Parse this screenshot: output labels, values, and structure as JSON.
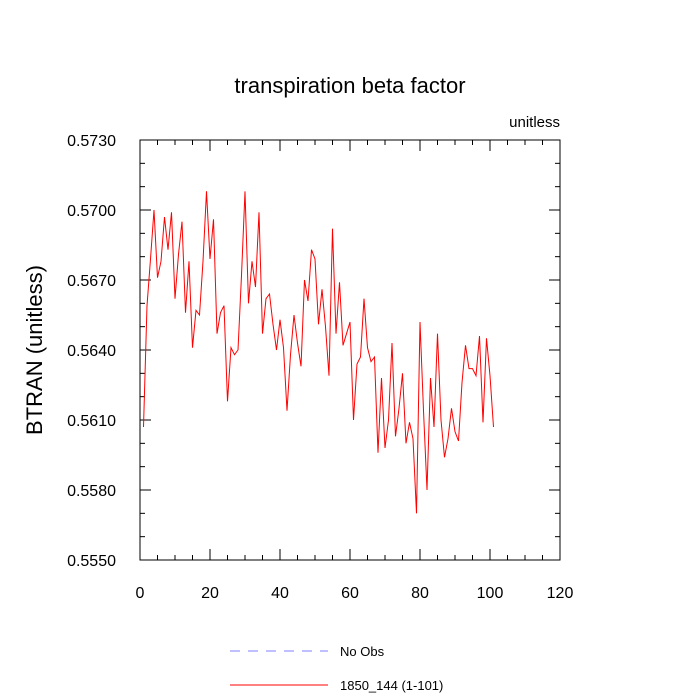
{
  "chart_data": {
    "type": "line",
    "title": "transpiration beta factor",
    "units_label": "unitless",
    "ylabel": "BTRAN  (unitless)",
    "xlabel": "",
    "xlim": [
      0,
      120
    ],
    "ylim": [
      0.555,
      0.573
    ],
    "x_ticks": [
      0,
      20,
      40,
      60,
      80,
      100,
      120
    ],
    "x_tick_labels": [
      "0",
      "20",
      "40",
      "60",
      "80",
      "100",
      "120"
    ],
    "y_ticks": [
      0.555,
      0.558,
      0.561,
      0.564,
      0.567,
      0.57,
      0.573
    ],
    "y_tick_labels": [
      "0.5550",
      "0.5580",
      "0.5610",
      "0.5640",
      "0.5670",
      "0.5700",
      "0.5730"
    ],
    "grid": false,
    "legend_position": "bottom",
    "series": [
      {
        "name": "No Obs",
        "color": "#0000ff",
        "style": "dashed",
        "values": []
      },
      {
        "name": "1850_144 (1-101)",
        "color": "#ff0000",
        "style": "solid",
        "x_start": 1,
        "values": [
          0.5607,
          0.5659,
          0.5679,
          0.57,
          0.5671,
          0.5678,
          0.5697,
          0.5683,
          0.5699,
          0.5662,
          0.5681,
          0.5695,
          0.5656,
          0.5678,
          0.5641,
          0.5657,
          0.5655,
          0.5678,
          0.5708,
          0.5679,
          0.5696,
          0.5647,
          0.5656,
          0.5659,
          0.5618,
          0.5641,
          0.5638,
          0.564,
          0.5672,
          0.5708,
          0.566,
          0.5678,
          0.5667,
          0.5699,
          0.5647,
          0.5662,
          0.5664,
          0.5651,
          0.564,
          0.5653,
          0.5641,
          0.5614,
          0.5638,
          0.5655,
          0.5643,
          0.5633,
          0.567,
          0.5661,
          0.5683,
          0.5679,
          0.5651,
          0.5666,
          0.565,
          0.5629,
          0.5692,
          0.5647,
          0.5669,
          0.5642,
          0.5647,
          0.5652,
          0.561,
          0.5634,
          0.5637,
          0.5662,
          0.5641,
          0.5635,
          0.5637,
          0.5596,
          0.5628,
          0.5598,
          0.561,
          0.5643,
          0.5603,
          0.5615,
          0.563,
          0.56,
          0.5609,
          0.5602,
          0.557,
          0.5652,
          0.5614,
          0.558,
          0.5628,
          0.5607,
          0.5647,
          0.561,
          0.5594,
          0.5602,
          0.5615,
          0.5605,
          0.5601,
          0.5626,
          0.5642,
          0.5632,
          0.5632,
          0.5629,
          0.5646,
          0.5609,
          0.5645,
          0.5629,
          0.5607
        ]
      }
    ]
  }
}
